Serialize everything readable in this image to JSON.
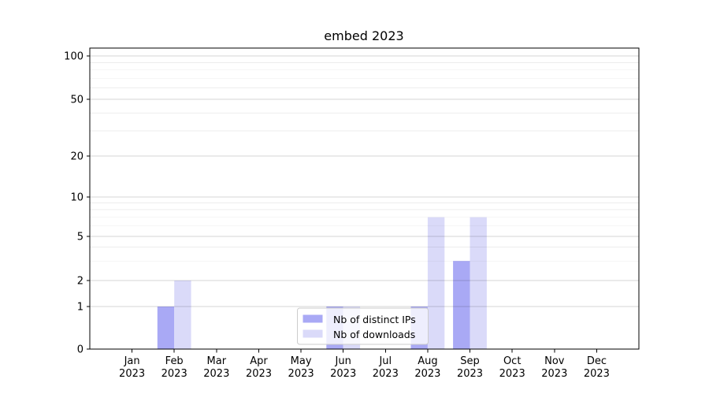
{
  "chart_data": {
    "type": "bar",
    "title": "embed 2023",
    "categories": [
      "Jan",
      "Feb",
      "Mar",
      "Apr",
      "May",
      "Jun",
      "Jul",
      "Aug",
      "Sep",
      "Oct",
      "Nov",
      "Dec"
    ],
    "year_label": "2023",
    "series": [
      {
        "name": "Nb of distinct IPs",
        "color": "#a9a9f5",
        "values": [
          0,
          1,
          0,
          0,
          0,
          1,
          0,
          1,
          3,
          0,
          0,
          0
        ]
      },
      {
        "name": "Nb of downloads",
        "color": "#dadaf9",
        "values": [
          0,
          2,
          0,
          0,
          0,
          1,
          0,
          7,
          7,
          0,
          0,
          0
        ]
      }
    ],
    "y_ticks": [
      0,
      1,
      2,
      5,
      10,
      20,
      50,
      100
    ],
    "y_minor_ticks": [
      3,
      4,
      6,
      7,
      8,
      9,
      30,
      40,
      60,
      70,
      80,
      90
    ],
    "y_scale": "symlog",
    "ylim": [
      0,
      110
    ],
    "grid": "on",
    "legend_position": "lower center",
    "background_color": "#ffffff",
    "axis_color": "#000000",
    "grid_major_color": "rgba(0,0,0,0.16)",
    "grid_minor_color": "rgba(0,0,0,0.07)",
    "legend_frame_fill": "rgba(255,255,255,0.8)",
    "legend_frame_border": "#cccccc"
  }
}
